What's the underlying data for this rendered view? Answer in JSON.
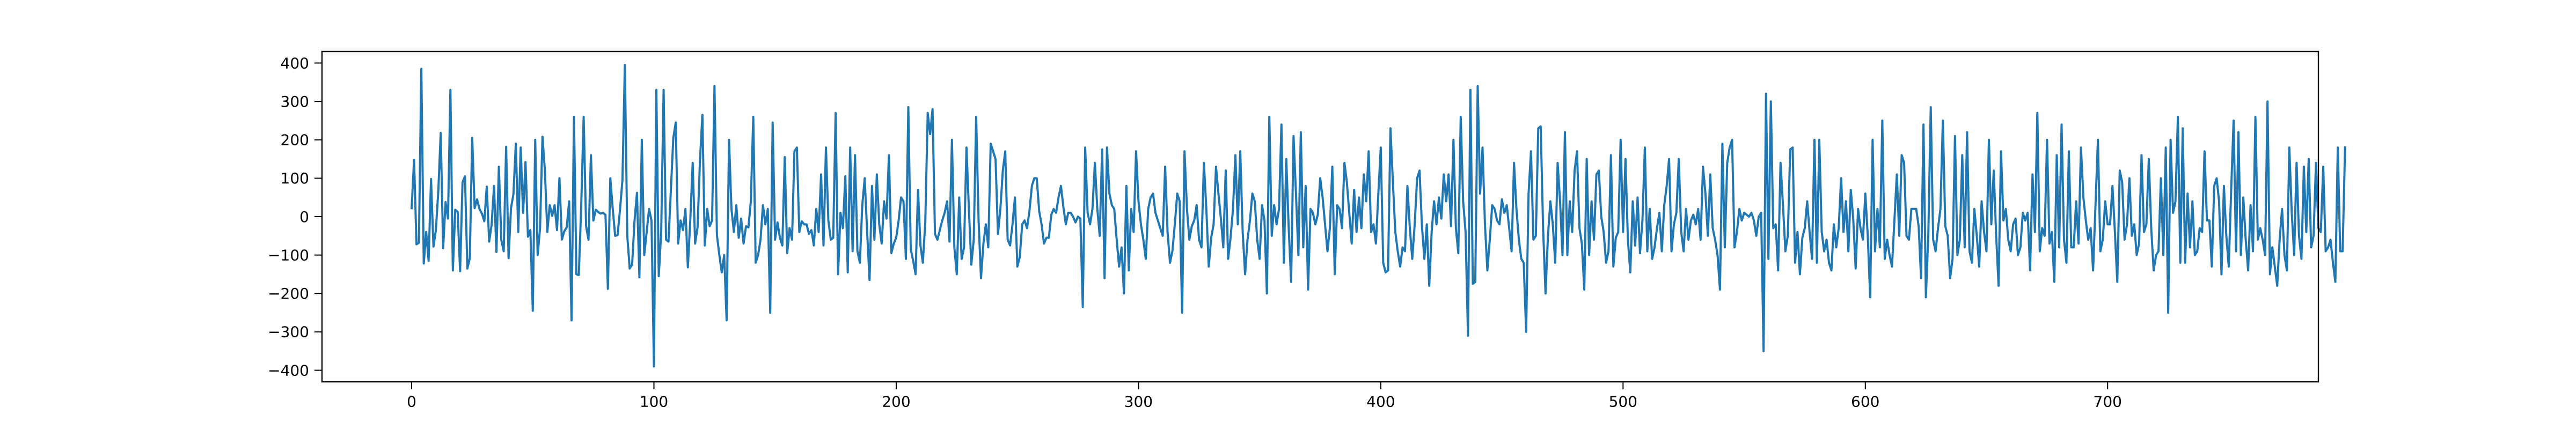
{
  "chart_data": {
    "type": "line",
    "title": "",
    "xlabel": "",
    "ylabel": "",
    "xlim": [
      -37,
      787
    ],
    "ylim": [
      -430,
      430
    ],
    "xticks": [
      0,
      100,
      200,
      300,
      400,
      500,
      600,
      700
    ],
    "yticks": [
      -400,
      -300,
      -200,
      -100,
      0,
      100,
      200,
      300,
      400
    ],
    "grid": false,
    "legend": "none",
    "series": [
      {
        "color": "#1f77b4",
        "x_start": 0,
        "x_step": 1,
        "values": [
          22,
          148,
          -72,
          -68,
          385,
          -122,
          -40,
          -115,
          98,
          -78,
          -35,
          66,
          218,
          -82,
          38,
          -5,
          330,
          -140,
          18,
          12,
          -142,
          89,
          105,
          -135,
          -108,
          205,
          22,
          45,
          20,
          8,
          -12,
          78,
          -65,
          -22,
          80,
          -92,
          130,
          -60,
          -90,
          182,
          -108,
          22,
          58,
          190,
          -40,
          180,
          10,
          142,
          -52,
          -35,
          -245,
          200,
          -100,
          -30,
          208,
          120,
          -40,
          30,
          2,
          30,
          -35,
          100,
          -60,
          -38,
          -28,
          40,
          -270,
          260,
          -150,
          -152,
          30,
          260,
          -25,
          -60,
          160,
          -10,
          18,
          12,
          8,
          10,
          5,
          -188,
          100,
          20,
          -50,
          -48,
          18,
          95,
          395,
          -50,
          -135,
          -125,
          -10,
          62,
          -158,
          200,
          -100,
          -40,
          20,
          -10,
          -390,
          330,
          -155,
          -40,
          330,
          -60,
          -65,
          70,
          205,
          245,
          -70,
          -10,
          -35,
          20,
          -132,
          -10,
          140,
          -70,
          -28,
          145,
          265,
          -75,
          20,
          -25,
          -10,
          340,
          -48,
          -100,
          -145,
          -100,
          -270,
          200,
          20,
          -40,
          30,
          -55,
          -5,
          -70,
          -25,
          -28,
          40,
          260,
          -120,
          -100,
          -60,
          30,
          -20,
          20,
          -250,
          245,
          -60,
          -15,
          -55,
          -75,
          155,
          -95,
          -30,
          -60,
          170,
          180,
          -40,
          -12,
          -20,
          -20,
          -45,
          -35,
          -75,
          20,
          -40,
          110,
          -75,
          180,
          -10,
          -60,
          -55,
          270,
          -150,
          10,
          -30,
          105,
          -145,
          180,
          -90,
          160,
          -90,
          -120,
          30,
          100,
          -40,
          -165,
          80,
          -60,
          110,
          -20,
          -70,
          40,
          -5,
          160,
          -95,
          -70,
          -55,
          -10,
          50,
          40,
          -110,
          285,
          -85,
          -115,
          -150,
          70,
          -75,
          -120,
          -15,
          270,
          215,
          280,
          -45,
          -60,
          -35,
          -10,
          10,
          40,
          -65,
          200,
          -80,
          -150,
          50,
          -110,
          -80,
          180,
          20,
          -125,
          -60,
          260,
          -10,
          -160,
          -70,
          -20,
          -80,
          190,
          170,
          150,
          -45,
          20,
          120,
          170,
          -60,
          -75,
          -20,
          50,
          -130,
          -105,
          -20,
          -10,
          -30,
          15,
          80,
          100,
          100,
          15,
          -20,
          -70,
          -55,
          -55,
          5,
          20,
          10,
          50,
          80,
          25,
          -20,
          10,
          10,
          0,
          -15,
          0,
          -5,
          -235,
          180,
          10,
          -20,
          20,
          140,
          20,
          -50,
          175,
          -160,
          180,
          60,
          30,
          20,
          -60,
          -130,
          -80,
          -200,
          80,
          -140,
          20,
          -40,
          170,
          40,
          -20,
          -60,
          -110,
          20,
          50,
          60,
          10,
          -10,
          -30,
          -50,
          130,
          -40,
          -120,
          -90,
          -20,
          60,
          40,
          -250,
          170,
          20,
          -60,
          -25,
          -10,
          30,
          -60,
          -80,
          140,
          20,
          -130,
          -55,
          -20,
          130,
          60,
          -5,
          -80,
          120,
          -110,
          -55,
          20,
          160,
          -20,
          170,
          -40,
          -150,
          -60,
          -10,
          60,
          40,
          -60,
          -110,
          30,
          -10,
          -200,
          260,
          -50,
          30,
          -20,
          20,
          240,
          -120,
          150,
          -30,
          -170,
          210,
          60,
          -100,
          220,
          -80,
          80,
          -190,
          20,
          10,
          -20,
          5,
          100,
          50,
          -20,
          -90,
          -30,
          130,
          -150,
          30,
          20,
          -30,
          140,
          90,
          10,
          -70,
          70,
          -40,
          50,
          -30,
          110,
          40,
          170,
          -40,
          -20,
          -70,
          60,
          180,
          -120,
          -145,
          -140,
          230,
          90,
          -40,
          -90,
          -130,
          -80,
          -90,
          80,
          -30,
          -110,
          -20,
          100,
          120,
          -25,
          -110,
          -20,
          -180,
          -40,
          40,
          -20,
          50,
          -5,
          110,
          40,
          110,
          -25,
          200,
          -30,
          -95,
          260,
          40,
          -40,
          -310,
          330,
          -175,
          -170,
          340,
          60,
          180,
          -20,
          -140,
          -60,
          30,
          20,
          -10,
          -20,
          45,
          10,
          30,
          -30,
          -90,
          140,
          20,
          -60,
          -110,
          -120,
          -300,
          60,
          170,
          -60,
          -50,
          230,
          235,
          -30,
          -200,
          -50,
          40,
          -20,
          -120,
          140,
          40,
          -100,
          220,
          -100,
          40,
          -40,
          120,
          170,
          -30,
          -70,
          -190,
          150,
          -100,
          40,
          -60,
          110,
          120,
          0,
          -40,
          -120,
          -90,
          160,
          -130,
          -55,
          -40,
          200,
          -40,
          150,
          -60,
          -145,
          40,
          -75,
          50,
          -95,
          -10,
          180,
          -90,
          20,
          -110,
          -80,
          -30,
          10,
          -90,
          30,
          80,
          150,
          -90,
          -20,
          10,
          150,
          -40,
          -90,
          20,
          -60,
          -10,
          5,
          -20,
          20,
          -60,
          130,
          60,
          -50,
          110,
          -30,
          -60,
          -100,
          -190,
          190,
          -80,
          140,
          180,
          200,
          -80,
          -40,
          20,
          -10,
          10,
          5,
          0,
          10,
          -10,
          -50,
          0,
          10,
          -350,
          320,
          -110,
          300,
          -30,
          -20,
          -140,
          140,
          30,
          -90,
          -50,
          175,
          180,
          -120,
          -40,
          -150,
          -55,
          -30,
          40,
          -40,
          -110,
          200,
          -120,
          200,
          -40,
          -90,
          -60,
          -120,
          -140,
          -20,
          -80,
          -30,
          100,
          -40,
          40,
          -90,
          70,
          -5,
          -135,
          20,
          -30,
          -60,
          60,
          -50,
          -210,
          200,
          -90,
          20,
          -80,
          250,
          -110,
          -60,
          -100,
          -130,
          -10,
          110,
          -50,
          160,
          140,
          -50,
          -60,
          20,
          20,
          20,
          -25,
          -160,
          240,
          -210,
          -45,
          285,
          -60,
          -90,
          -30,
          20,
          250,
          -25,
          -50,
          -160,
          -110,
          210,
          -100,
          -60,
          160,
          -80,
          220,
          -90,
          -120,
          20,
          -50,
          -130,
          40,
          -40,
          -90,
          200,
          -20,
          120,
          -50,
          -180,
          170,
          -10,
          20,
          -60,
          -90,
          -20,
          -5,
          -100,
          -80,
          10,
          -10,
          10,
          -140,
          110,
          -40,
          270,
          -90,
          -30,
          -50,
          200,
          -70,
          -40,
          -170,
          160,
          -80,
          240,
          -60,
          -120,
          170,
          -80,
          -80,
          40,
          -70,
          180,
          50,
          -10,
          -60,
          -30,
          -140,
          30,
          200,
          -90,
          -60,
          40,
          -20,
          -20,
          80,
          -40,
          -170,
          120,
          90,
          -60,
          -20,
          100,
          -50,
          -20,
          -100,
          -70,
          160,
          -40,
          -20,
          150,
          -30,
          -140,
          -100,
          -90,
          100,
          -100,
          180,
          -250,
          200,
          10,
          40,
          260,
          -120,
          230,
          -120,
          60,
          -80,
          40,
          -100,
          -90,
          -30,
          -40,
          170,
          -10,
          -10,
          -130,
          80,
          100,
          40,
          -150,
          80,
          -50,
          -130,
          70,
          250,
          -90,
          220,
          -100,
          50,
          -60,
          -140,
          30,
          -90,
          260,
          -60,
          -30,
          -60,
          -100,
          300,
          -150,
          -80,
          -130,
          -180,
          -60,
          20,
          -100,
          -140,
          180,
          10,
          -100,
          140,
          -50,
          -110,
          130,
          -40,
          150,
          -80,
          -50,
          140,
          -30,
          -40,
          130,
          -90,
          -80,
          -60,
          -120,
          -170,
          180,
          -90,
          -90,
          180
        ]
      }
    ]
  }
}
